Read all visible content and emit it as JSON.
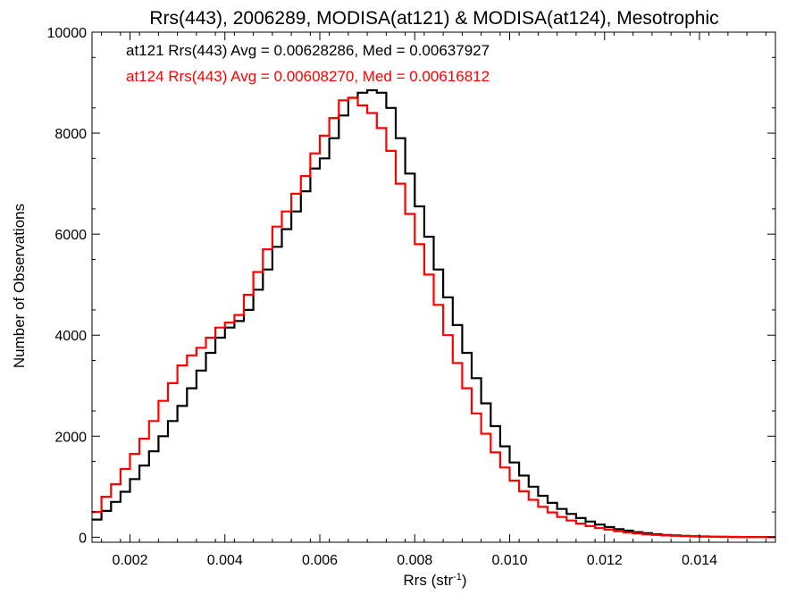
{
  "chart_data": {
    "type": "line",
    "title": "Rrs(443), 2006289, MODISA(at121) & MODISA(at124), Mesotrophic",
    "xlabel": "Rrs (str",
    "xlabel_sup": "-1",
    "xlabel_end": ")",
    "ylabel": "Number of Observations",
    "xlim": [
      0.0012,
      0.0156
    ],
    "ylim": [
      -100,
      10000
    ],
    "xticks": [
      0.002,
      0.004,
      0.006,
      0.008,
      0.01,
      0.012,
      0.014
    ],
    "xtick_labels": [
      "0.002",
      "0.004",
      "0.006",
      "0.008",
      "0.010",
      "0.012",
      "0.014"
    ],
    "yticks": [
      0,
      2000,
      4000,
      6000,
      8000,
      10000
    ],
    "ytick_labels": [
      "0",
      "2000",
      "4000",
      "6000",
      "8000",
      "10000"
    ],
    "grid": false,
    "step": true,
    "annotations": [
      {
        "text": "at121 Rrs(443) Avg = 0.00628286, Med = 0.00637927",
        "color": "#000000"
      },
      {
        "text": "at124 Rrs(443) Avg = 0.00608270, Med = 0.00616812",
        "color": "#ff0000"
      }
    ],
    "series": [
      {
        "color": "#000000",
        "x": [
          0.0012,
          0.0014,
          0.0016,
          0.0018,
          0.002,
          0.0022,
          0.0024,
          0.0026,
          0.0028,
          0.003,
          0.0032,
          0.0034,
          0.0036,
          0.0038,
          0.004,
          0.0042,
          0.0044,
          0.0046,
          0.0048,
          0.005,
          0.0052,
          0.0054,
          0.0056,
          0.0058,
          0.006,
          0.0062,
          0.0064,
          0.0066,
          0.0068,
          0.007,
          0.0072,
          0.0074,
          0.0076,
          0.0078,
          0.008,
          0.0082,
          0.0084,
          0.0086,
          0.0088,
          0.009,
          0.0092,
          0.0094,
          0.0096,
          0.0098,
          0.01,
          0.0102,
          0.0104,
          0.0106,
          0.0108,
          0.011,
          0.0112,
          0.0114,
          0.0116,
          0.0118,
          0.012,
          0.0122,
          0.0124,
          0.0126,
          0.0128,
          0.013,
          0.0132,
          0.0134,
          0.0136,
          0.0138,
          0.014,
          0.0142,
          0.0144,
          0.0146,
          0.0148,
          0.015,
          0.0152,
          0.0154
        ],
        "y": [
          350,
          520,
          700,
          900,
          1150,
          1420,
          1700,
          2000,
          2300,
          2600,
          2950,
          3300,
          3650,
          3950,
          4150,
          4280,
          4500,
          4900,
          5300,
          5750,
          6100,
          6450,
          6850,
          7300,
          7500,
          7900,
          8350,
          8700,
          8800,
          8850,
          8800,
          8500,
          7900,
          7200,
          6550,
          5950,
          5300,
          4750,
          4200,
          3650,
          3150,
          2650,
          2200,
          1800,
          1480,
          1220,
          1000,
          820,
          680,
          560,
          460,
          380,
          310,
          250,
          200,
          160,
          130,
          100,
          80,
          60,
          45,
          35,
          25,
          20,
          15,
          10,
          8,
          6,
          5,
          4,
          3,
          2
        ]
      },
      {
        "color": "#ff0000",
        "x": [
          0.0012,
          0.0014,
          0.0016,
          0.0018,
          0.002,
          0.0022,
          0.0024,
          0.0026,
          0.0028,
          0.003,
          0.0032,
          0.0034,
          0.0036,
          0.0038,
          0.004,
          0.0042,
          0.0044,
          0.0046,
          0.0048,
          0.005,
          0.0052,
          0.0054,
          0.0056,
          0.0058,
          0.006,
          0.0062,
          0.0064,
          0.0066,
          0.0068,
          0.007,
          0.0072,
          0.0074,
          0.0076,
          0.0078,
          0.008,
          0.0082,
          0.0084,
          0.0086,
          0.0088,
          0.009,
          0.0092,
          0.0094,
          0.0096,
          0.0098,
          0.01,
          0.0102,
          0.0104,
          0.0106,
          0.0108,
          0.011,
          0.0112,
          0.0114,
          0.0116,
          0.0118,
          0.012,
          0.0122,
          0.0124,
          0.0126,
          0.0128,
          0.013,
          0.0132,
          0.0134,
          0.0136,
          0.0138,
          0.014,
          0.0142,
          0.0144,
          0.0146,
          0.0148,
          0.015,
          0.0152,
          0.0154
        ],
        "y": [
          500,
          800,
          1050,
          1350,
          1650,
          1950,
          2300,
          2700,
          3050,
          3400,
          3600,
          3750,
          3950,
          4150,
          4250,
          4400,
          4800,
          5250,
          5700,
          6150,
          6450,
          6800,
          7150,
          7600,
          7950,
          8300,
          8650,
          8700,
          8550,
          8400,
          8100,
          7650,
          7000,
          6400,
          5800,
          5200,
          4600,
          4000,
          3450,
          2950,
          2450,
          2050,
          1680,
          1380,
          1120,
          910,
          740,
          600,
          490,
          400,
          330,
          270,
          220,
          180,
          150,
          120,
          95,
          75,
          58,
          45,
          35,
          27,
          20,
          15,
          11,
          8,
          6,
          5,
          4,
          3,
          2,
          1
        ]
      }
    ]
  }
}
